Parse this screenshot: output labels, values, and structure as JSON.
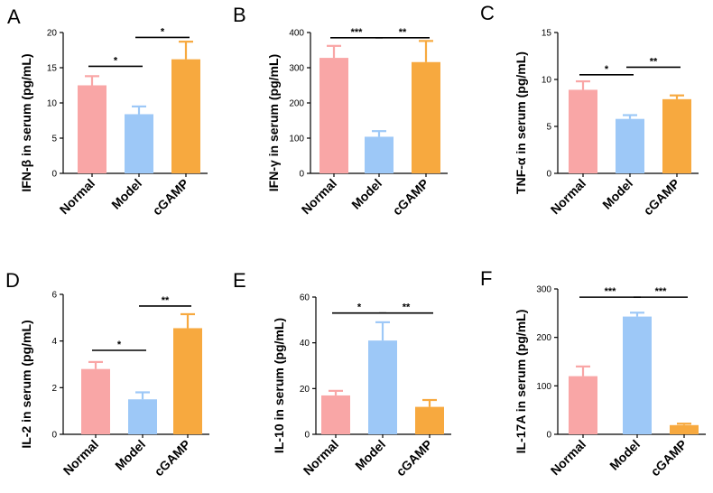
{
  "figure": {
    "colors": {
      "Normal": "#f9a6a6",
      "Model": "#9dc8f7",
      "cGAMP": "#f7a93f"
    }
  },
  "chart_data": [
    {
      "type": "bar",
      "panel": "A",
      "title": "",
      "ylabel": "IFN-β  in serum (pg/mL)",
      "xlabel": "",
      "categories": [
        "Normal",
        "Model",
        "cGAMP"
      ],
      "values": [
        12.5,
        8.4,
        16.2
      ],
      "errors": [
        1.3,
        1.1,
        2.5
      ],
      "ylim": [
        0,
        20
      ],
      "yticks": [
        "0",
        "5",
        "10",
        "15",
        "20"
      ],
      "significance": [
        {
          "from": 0,
          "to": 1,
          "label": "*",
          "y": 15.2
        },
        {
          "from": 1,
          "to": 2,
          "label": "*",
          "y": 19.3
        }
      ]
    },
    {
      "type": "bar",
      "panel": "B",
      "title": "",
      "ylabel": "IFN-γ  in serum (pg/mL)",
      "xlabel": "",
      "categories": [
        "Normal",
        "Model",
        "cGAMP"
      ],
      "values": [
        328,
        104,
        316
      ],
      "errors": [
        34,
        16,
        60
      ],
      "ylim": [
        0,
        400
      ],
      "yticks": [
        "0",
        "100",
        "200",
        "300",
        "400"
      ],
      "significance": [
        {
          "from": 0,
          "to": 1,
          "label": "***",
          "y": 385
        },
        {
          "from": 1,
          "to": 2,
          "label": "**",
          "y": 385
        }
      ]
    },
    {
      "type": "bar",
      "panel": "C",
      "title": "",
      "ylabel": "TNF-α  in serum (pg/mL)",
      "xlabel": "",
      "categories": [
        "Normal",
        "Model",
        "cGAMP"
      ],
      "values": [
        8.9,
        5.8,
        7.9
      ],
      "errors": [
        0.9,
        0.4,
        0.4
      ],
      "ylim": [
        0,
        15
      ],
      "yticks": [
        "0",
        "5",
        "10",
        "15"
      ],
      "significance": [
        {
          "from": 0,
          "to": 1,
          "label": "*",
          "y": 10.5
        },
        {
          "from": 1,
          "to": 2,
          "label": "**",
          "y": 11.3
        }
      ]
    },
    {
      "type": "bar",
      "panel": "D",
      "title": "",
      "ylabel": "IL-2 in serum (pg/mL)",
      "xlabel": "",
      "categories": [
        "Normal",
        "Model",
        "cGAMP"
      ],
      "values": [
        2.8,
        1.5,
        4.55
      ],
      "errors": [
        0.3,
        0.3,
        0.6
      ],
      "ylim": [
        0,
        6
      ],
      "yticks": [
        "0",
        "2",
        "4",
        "6"
      ],
      "significance": [
        {
          "from": 0,
          "to": 1,
          "label": "*",
          "y": 3.6
        },
        {
          "from": 1,
          "to": 2,
          "label": "**",
          "y": 5.5
        }
      ]
    },
    {
      "type": "bar",
      "panel": "E",
      "title": "",
      "ylabel": "IL-10 in serum (pg/mL)",
      "xlabel": "",
      "categories": [
        "Normal",
        "Model",
        "cGAMP"
      ],
      "values": [
        17,
        41,
        12
      ],
      "errors": [
        2,
        8,
        3
      ],
      "ylim": [
        0,
        60
      ],
      "yticks": [
        "0",
        "20",
        "40",
        "60"
      ],
      "significance": [
        {
          "from": 0,
          "to": 1,
          "label": "*",
          "y": 53
        },
        {
          "from": 1,
          "to": 2,
          "label": "**",
          "y": 53
        }
      ]
    },
    {
      "type": "bar",
      "panel": "F",
      "title": "",
      "ylabel": "IL-17A in serum (pg/mL)",
      "xlabel": "",
      "categories": [
        "Normal",
        "Model",
        "cGAMP"
      ],
      "values": [
        120,
        243,
        19
      ],
      "errors": [
        20,
        8,
        3
      ],
      "ylim": [
        0,
        300
      ],
      "yticks": [
        "0",
        "100",
        "200",
        "300"
      ],
      "significance": [
        {
          "from": 0,
          "to": 1,
          "label": "***",
          "y": 283
        },
        {
          "from": 1,
          "to": 2,
          "label": "***",
          "y": 283
        }
      ]
    }
  ]
}
